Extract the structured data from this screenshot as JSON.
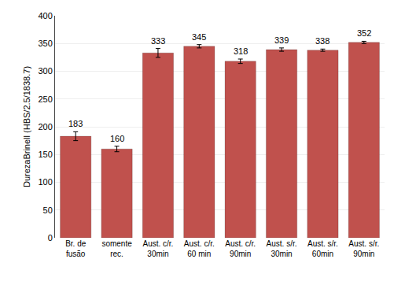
{
  "chart_data": {
    "type": "bar",
    "categories": [
      "Br. de\nfusão",
      "somente\nrec.",
      "Aust. c/r.\n30min",
      "Aust. c/r.\n60 min",
      "Aust. c/r.\n90min",
      "Aust. s/r.\n30min",
      "Aust. s/r.\n60min",
      "Aust. s/r.\n90min"
    ],
    "values": [
      183,
      160,
      333,
      345,
      318,
      339,
      338,
      352
    ],
    "errors": [
      8,
      5,
      8,
      3,
      4,
      3,
      2,
      2
    ],
    "color": "#c0514d",
    "ylabel": "DurezaBrinell (HBS/2.5/1838.7)",
    "ylim": [
      0,
      400
    ],
    "yticks": [
      0,
      50,
      100,
      150,
      200,
      250,
      300,
      350,
      400
    ],
    "grid": true,
    "data_labels": true
  }
}
